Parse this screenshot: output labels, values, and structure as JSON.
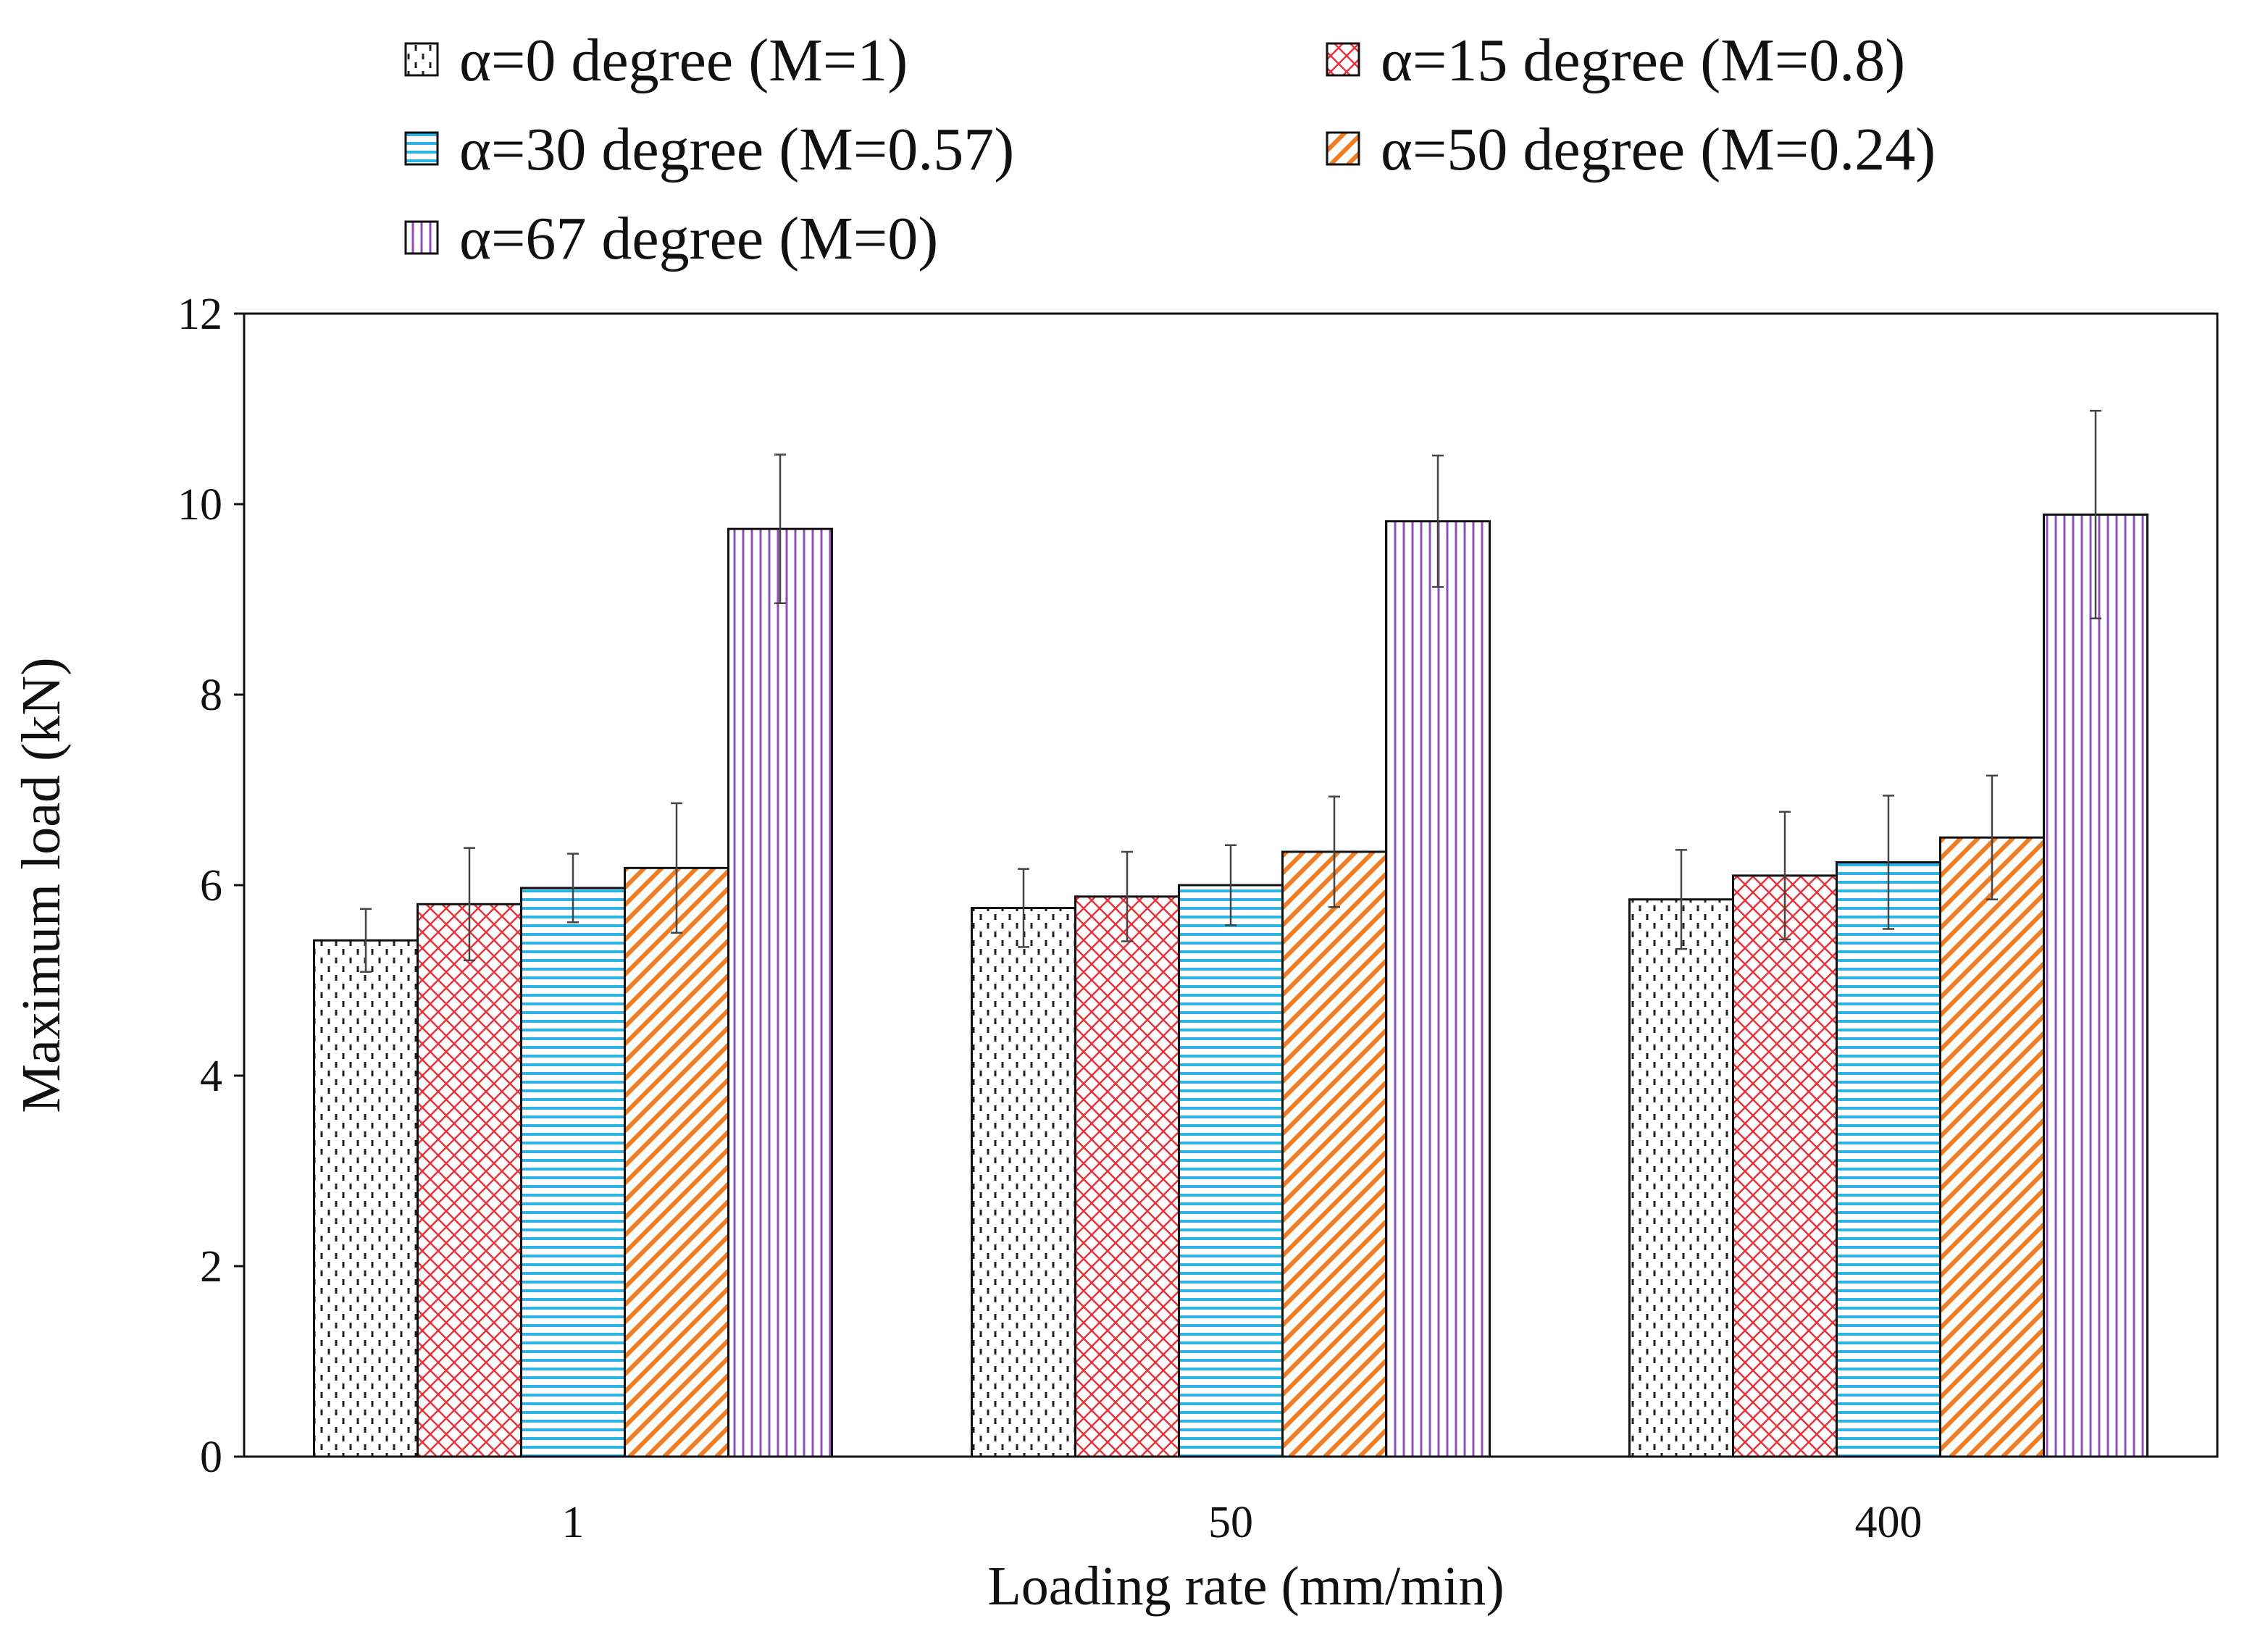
{
  "chart_data": {
    "type": "bar",
    "xlabel": "Loading rate (mm/min)",
    "ylabel": "Maximum load (kN)",
    "ylim": [
      0,
      12
    ],
    "yticks": [
      0,
      2,
      4,
      6,
      8,
      10,
      12
    ],
    "categories": [
      "1",
      "50",
      "400"
    ],
    "legend_position": "top",
    "grid": false,
    "series": [
      {
        "name": "α=0 degree (M=1)",
        "values": [
          5.42,
          5.76,
          5.85
        ],
        "errors": [
          0.33,
          0.41,
          0.52
        ],
        "pattern": "dashes",
        "color": "#222222"
      },
      {
        "name": "α=15 degree (M=0.8)",
        "values": [
          5.8,
          5.88,
          6.1
        ],
        "errors": [
          0.59,
          0.47,
          0.67
        ],
        "pattern": "crosshatch",
        "color": "#e8333a"
      },
      {
        "name": "α=30 degree (M=0.57)",
        "values": [
          5.97,
          6.0,
          6.24
        ],
        "errors": [
          0.36,
          0.42,
          0.7
        ],
        "pattern": "horizontal",
        "color": "#2ab3e3"
      },
      {
        "name": "α=50 degree (M=0.24)",
        "values": [
          6.18,
          6.35,
          6.5
        ],
        "errors": [
          0.68,
          0.58,
          0.65
        ],
        "pattern": "diagonal",
        "color": "#ef7d22"
      },
      {
        "name": "α=67 degree (M=0)",
        "values": [
          9.74,
          9.82,
          9.89
        ],
        "errors": [
          0.78,
          0.69,
          1.09
        ],
        "pattern": "vertical",
        "color": "#8e4fb8"
      }
    ]
  }
}
